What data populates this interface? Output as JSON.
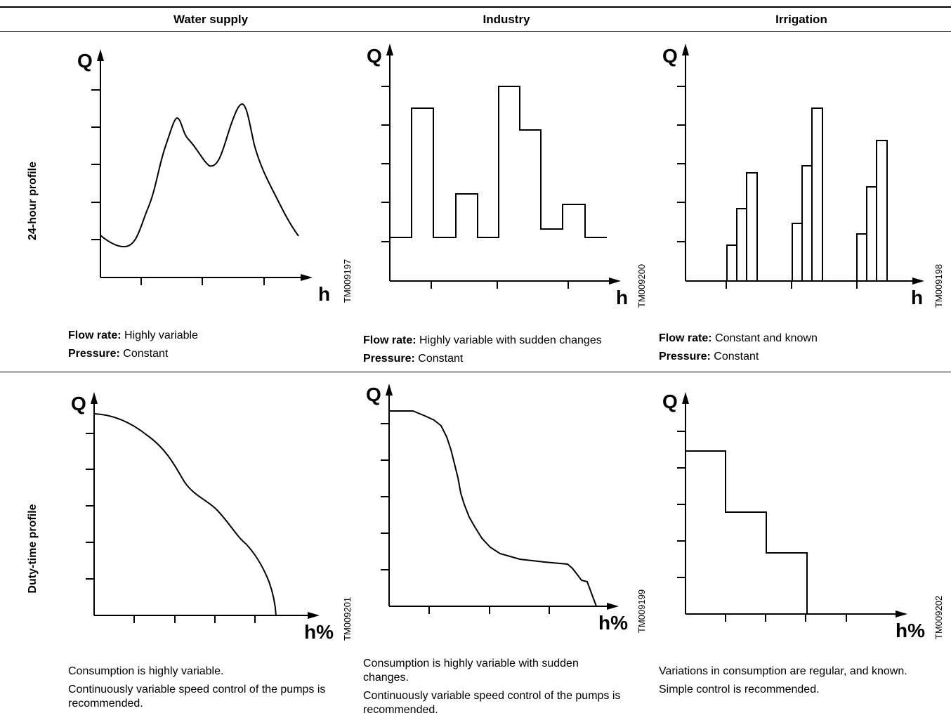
{
  "columns": [
    "Water supply",
    "Industry",
    "Irrigation"
  ],
  "rows": [
    "24-hour profile",
    "Duty-time profile"
  ],
  "axis": {
    "y": "Q",
    "x_hour": "h",
    "x_duty": "h%"
  },
  "panels": {
    "water_24h": {
      "code": "TM009197"
    },
    "industry_24h": {
      "code": "TM009200"
    },
    "irrigation_24h": {
      "code": "TM009198"
    },
    "water_duty": {
      "code": "TM009201"
    },
    "industry_duty": {
      "code": "TM009199"
    },
    "irrigation_duty": {
      "code": "TM009202"
    }
  },
  "captions_24h": {
    "flow_label": "Flow rate:",
    "pressure_label": "Pressure:",
    "water_flow": " Highly variable",
    "water_pressure": " Constant",
    "industry_flow": " Highly variable with sudden changes",
    "industry_pressure": " Constant",
    "irrigation_flow": " Constant and known",
    "irrigation_pressure": " Constant"
  },
  "captions_duty": {
    "water_1": "Consumption is highly variable.",
    "water_2": "Continuously variable speed control of the pumps is recommended.",
    "industry_1": "Consumption is highly variable with sudden changes.",
    "industry_2": "Continuously variable speed control of the pumps is recommended.",
    "irrigation_1": "Variations in consumption are regular, and known.",
    "irrigation_2": "Simple control is recommended."
  }
}
